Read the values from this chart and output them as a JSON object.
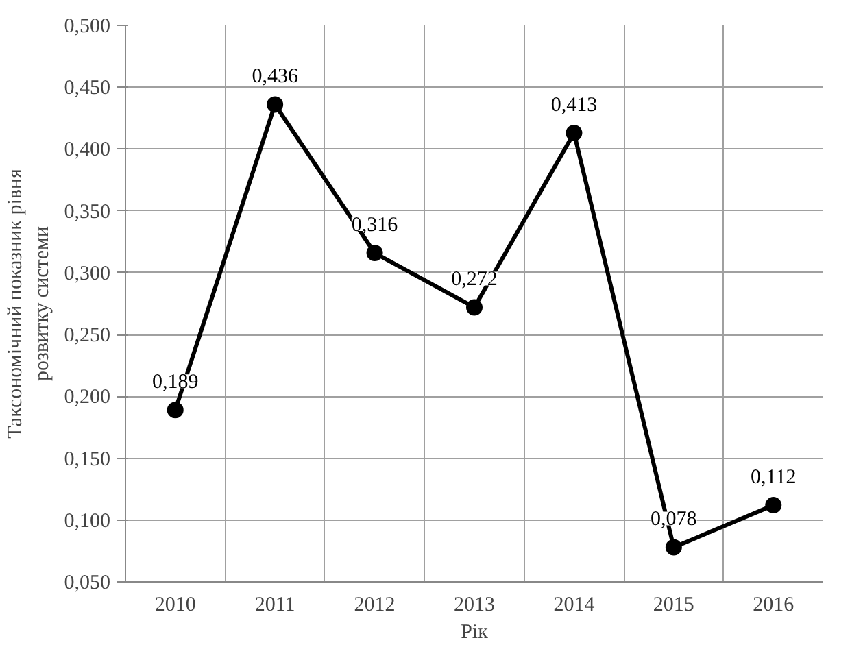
{
  "chart_data": {
    "type": "line",
    "xlabel": "Рік",
    "ylabel": "Таксономічний показник рівня\nрозвитку системи",
    "categories": [
      "2010",
      "2011",
      "2012",
      "2013",
      "2014",
      "2015",
      "2016"
    ],
    "series": [
      {
        "color": "#000000",
        "values": [
          0.189,
          0.436,
          0.316,
          0.272,
          0.413,
          0.078,
          0.112
        ],
        "value_labels": [
          "0,189",
          "0,436",
          "0,316",
          "0,272",
          "0,413",
          "0,078",
          "0,112"
        ]
      }
    ],
    "ylim": [
      0.05,
      0.5
    ],
    "yticks": [
      {
        "value": 0.05,
        "label": "0,050"
      },
      {
        "value": 0.1,
        "label": "0,100"
      },
      {
        "value": 0.15,
        "label": "0,150"
      },
      {
        "value": 0.2,
        "label": "0,200"
      },
      {
        "value": 0.25,
        "label": "0,250"
      },
      {
        "value": 0.3,
        "label": "0,300"
      },
      {
        "value": 0.35,
        "label": "0,350"
      },
      {
        "value": 0.4,
        "label": "0,400"
      },
      {
        "value": 0.45,
        "label": "0,450"
      },
      {
        "value": 0.5,
        "label": "0,500"
      }
    ],
    "grid": true,
    "marker": "circle",
    "line_style": "solid"
  }
}
